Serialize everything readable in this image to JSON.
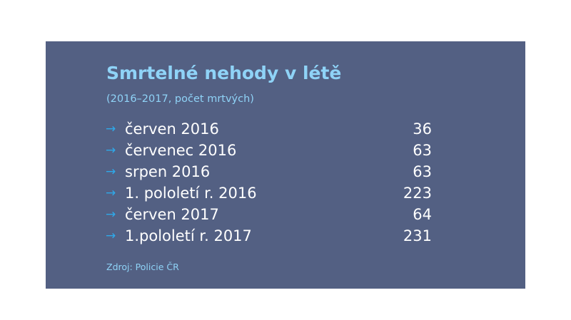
{
  "title": "Smrtelné nehody v létě",
  "subtitle": "(2016–2017, počet mrtvých)",
  "source": "Zdroj: Policie ČR",
  "row_icon": "arrow-right-icon",
  "colors": {
    "background": "#536083",
    "accent": "#8fd3f7",
    "arrow": "#2ea9ea",
    "text": "#ffffff"
  },
  "chart_data": {
    "type": "table",
    "title": "Smrtelné nehody v létě",
    "subtitle": "(2016–2017, počet mrtvých)",
    "categories": [
      "červen 2016",
      "červenec 2016",
      "srpen 2016",
      "1. pololetí r. 2016",
      "červen 2017",
      "1.pololetí r. 2017"
    ],
    "values": [
      36,
      63,
      63,
      223,
      64,
      231
    ]
  }
}
